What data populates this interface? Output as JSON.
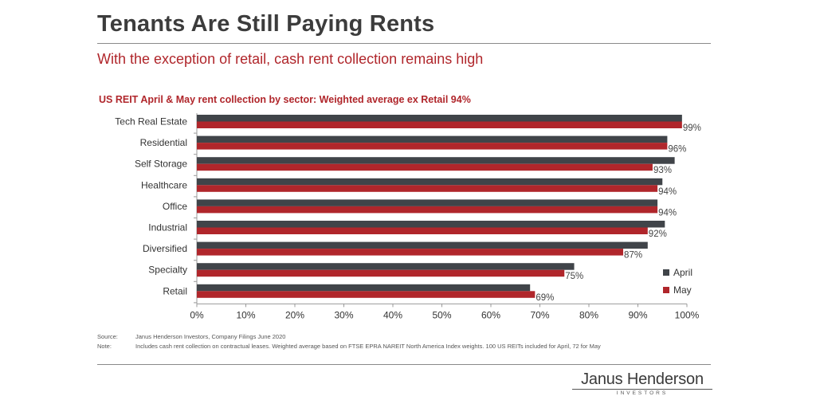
{
  "header": {
    "title": "Tenants Are Still Paying Rents",
    "subtitle": "With the exception of retail, cash rent collection remains high"
  },
  "chart_data": {
    "type": "bar",
    "orientation": "horizontal",
    "title": "US REIT April & May rent collection by sector: Weighted average ex Retail 94%",
    "categories": [
      "Tech Real Estate",
      "Residential",
      "Self Storage",
      "Healthcare",
      "Office",
      "Industrial",
      "Diversified",
      "Specialty",
      "Retail"
    ],
    "series": [
      {
        "name": "April",
        "color": "#404449",
        "values": [
          99,
          96,
          97.5,
          95,
          94,
          95.5,
          92,
          77,
          68
        ]
      },
      {
        "name": "May",
        "color": "#b0262b",
        "values": [
          99,
          96,
          93,
          94,
          94,
          92,
          87,
          75,
          69
        ]
      }
    ],
    "data_labels": [
      "99%",
      "96%",
      "93%",
      "94%",
      "94%",
      "92%",
      "87%",
      "75%",
      "69%"
    ],
    "xlim": [
      0,
      100
    ],
    "x_ticks": [
      "0%",
      "10%",
      "20%",
      "30%",
      "40%",
      "50%",
      "60%",
      "70%",
      "80%",
      "90%",
      "100%"
    ],
    "xlabel": "",
    "ylabel": "",
    "legend": {
      "position": "bottom-right",
      "entries": [
        "April",
        "May"
      ]
    },
    "grid": false
  },
  "footer": {
    "source_key": "Source:",
    "source_text": "Janus Henderson Investors, Company Filings June 2020",
    "note_key": "Note:",
    "note_text": "Includes cash rent collection on contractual leases. Weighted average based on FTSE EPRA NAREIT North America Index weights. 100 US REITs included for April, 72 for May",
    "logo_main": "Janus Henderson",
    "logo_sub": "INVESTORS"
  }
}
